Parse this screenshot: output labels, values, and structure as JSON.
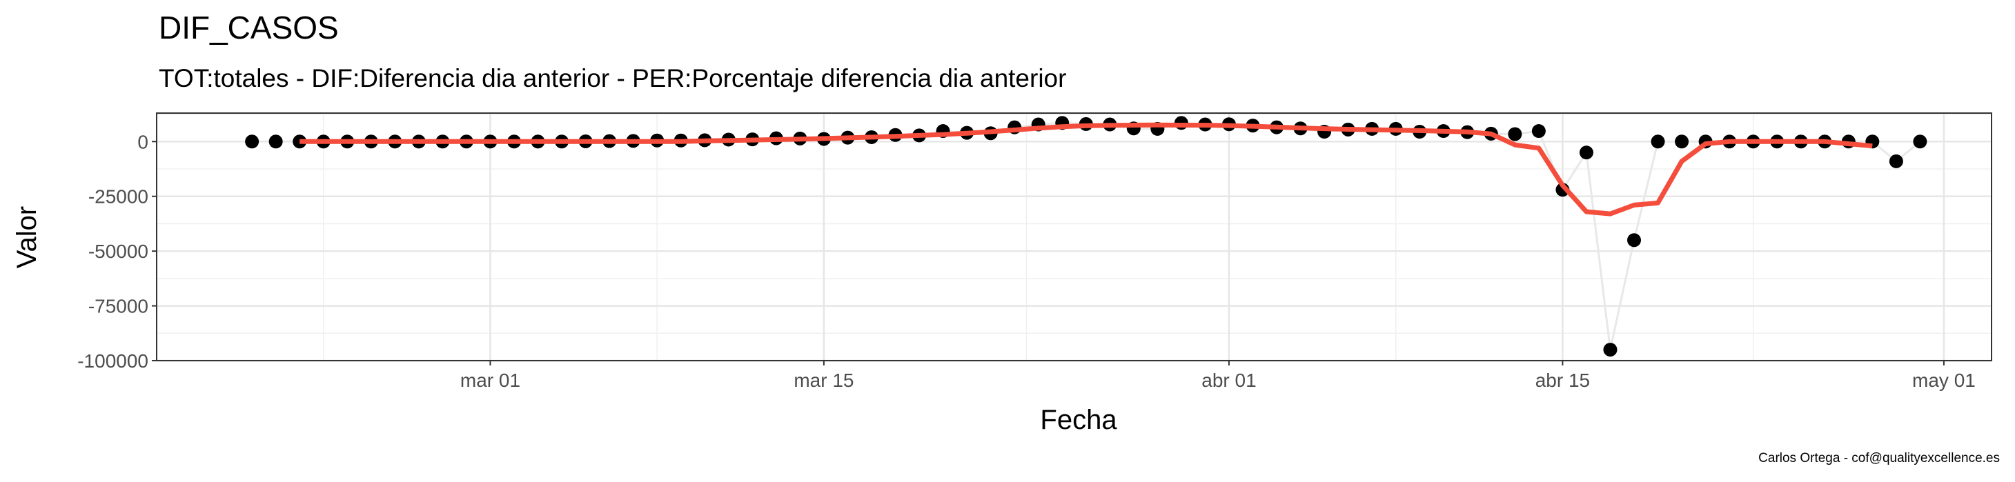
{
  "chart_data": {
    "type": "line",
    "title": "DIF_CASOS",
    "subtitle": "TOT:totales - DIF:Diferencia dia anterior - PER:Porcentaje diferencia dia anterior",
    "x_label": "Fecha",
    "y_label": "Valor",
    "caption": "Carlos Ortega - cof@qualityexcellence.es",
    "xlim": [
      "02-16",
      "05-03"
    ],
    "xticks": [
      {
        "value": "03-01",
        "label": "mar 01"
      },
      {
        "value": "03-15",
        "label": "mar 15"
      },
      {
        "value": "04-01",
        "label": "abr 01"
      },
      {
        "value": "04-15",
        "label": "abr 15"
      },
      {
        "value": "05-01",
        "label": "may 01"
      }
    ],
    "ylim": [
      -100000,
      13000
    ],
    "yticks": [
      0,
      -25000,
      -50000,
      -75000,
      -100000
    ],
    "grid": true,
    "series": [
      {
        "color": "#000000",
        "line_color": "#e8e8e8",
        "markers": true,
        "x": [
          "02-20",
          "02-21",
          "02-22",
          "02-23",
          "02-24",
          "02-25",
          "02-26",
          "02-27",
          "02-28",
          "02-29",
          "03-01",
          "03-02",
          "03-03",
          "03-04",
          "03-05",
          "03-06",
          "03-07",
          "03-08",
          "03-09",
          "03-10",
          "03-11",
          "03-12",
          "03-13",
          "03-14",
          "03-15",
          "03-16",
          "03-17",
          "03-18",
          "03-19",
          "03-20",
          "03-21",
          "03-22",
          "03-23",
          "03-24",
          "03-25",
          "03-26",
          "03-27",
          "03-28",
          "03-29",
          "03-30",
          "03-31",
          "04-01",
          "04-02",
          "04-03",
          "04-04",
          "04-05",
          "04-06",
          "04-07",
          "04-08",
          "04-09",
          "04-10",
          "04-11",
          "04-12",
          "04-13",
          "04-14",
          "04-15",
          "04-16",
          "04-17",
          "04-18",
          "04-19",
          "04-20",
          "04-21",
          "04-22",
          "04-23",
          "04-24",
          "04-25",
          "04-26",
          "04-27",
          "04-28",
          "04-29",
          "04-30"
        ],
        "values": [
          0,
          0,
          0,
          0,
          0,
          0,
          0,
          0,
          0,
          0,
          0,
          0,
          0,
          0,
          100,
          200,
          300,
          500,
          500,
          600,
          900,
          1000,
          1500,
          1400,
          1200,
          1800,
          2000,
          3000,
          2800,
          4800,
          4000,
          3800,
          6500,
          7800,
          8500,
          8000,
          7800,
          6000,
          5800,
          8500,
          7800,
          7900,
          7300,
          6500,
          6000,
          4500,
          5500,
          5800,
          5800,
          4500,
          4800,
          4300,
          3600,
          3400,
          4800,
          -22000,
          -5000,
          -95000,
          -45000,
          0,
          0,
          0,
          0,
          0,
          0,
          0,
          0,
          0,
          0,
          -9000,
          0
        ]
      },
      {
        "color": "#f44d3c",
        "markers": false,
        "x": [
          "02-22",
          "02-23",
          "02-24",
          "02-25",
          "02-26",
          "02-27",
          "02-28",
          "02-29",
          "03-01",
          "03-02",
          "03-03",
          "03-04",
          "03-05",
          "03-06",
          "03-07",
          "03-08",
          "03-09",
          "03-10",
          "03-11",
          "03-12",
          "03-13",
          "03-14",
          "03-15",
          "03-16",
          "03-17",
          "03-18",
          "03-19",
          "03-20",
          "03-21",
          "03-22",
          "03-23",
          "03-24",
          "03-25",
          "03-26",
          "03-27",
          "03-28",
          "03-29",
          "03-30",
          "03-31",
          "04-01",
          "04-02",
          "04-03",
          "04-04",
          "04-05",
          "04-06",
          "04-07",
          "04-08",
          "04-09",
          "04-10",
          "04-11",
          "04-12",
          "04-13",
          "04-14",
          "04-15",
          "04-16",
          "04-17",
          "04-18",
          "04-19",
          "04-20",
          "04-21",
          "04-22",
          "04-23",
          "04-24",
          "04-25",
          "04-26",
          "04-27",
          "04-28"
        ],
        "values": [
          0,
          0,
          0,
          0,
          0,
          0,
          0,
          0,
          0,
          0,
          0,
          0,
          0,
          0,
          0,
          0,
          0,
          300,
          500,
          700,
          900,
          1100,
          1400,
          1700,
          2000,
          2400,
          2800,
          3200,
          3800,
          4500,
          5300,
          6100,
          6800,
          7200,
          7400,
          7500,
          7600,
          7500,
          7500,
          7300,
          7000,
          6600,
          6200,
          5900,
          5600,
          5400,
          5200,
          5000,
          4700,
          4400,
          3500,
          -1500,
          -3000,
          -20000,
          -32000,
          -33000,
          -29000,
          -28000,
          -9000,
          -1000,
          0,
          0,
          0,
          0,
          0,
          -1000,
          -2000
        ]
      }
    ]
  }
}
